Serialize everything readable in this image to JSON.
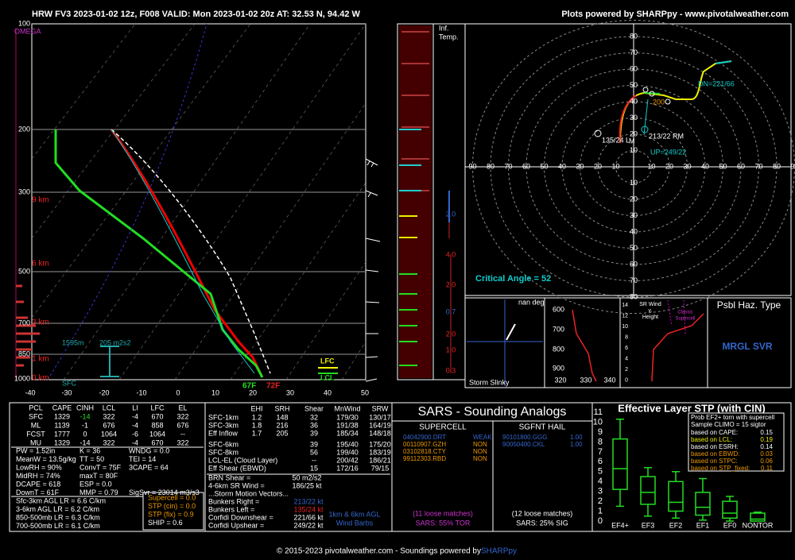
{
  "header": {
    "title": "HRW FV3 2023-01-02 12z, F008  VALID: Mon 2023-01-02 20z  AT: 32.53 N, 94.42 W",
    "credit": "Plots powered by SHARPpy - www.pivotalweather.com"
  },
  "skewt": {
    "pressure_labels": [
      "100",
      "200",
      "300",
      "500",
      "700",
      "850",
      "1000"
    ],
    "temp_labels": [
      "-40",
      "-30",
      "-20",
      "-10",
      "0",
      "10",
      "20",
      "30",
      "40",
      "50"
    ],
    "height_labels": [
      "9 km",
      "6 km",
      "3 km",
      "1 km",
      "0 km"
    ],
    "omega": "OMEGA",
    "eff_top": "1595m",
    "eff_srh": "205 m2s2",
    "sfc": "SFC",
    "lfc": "LFC",
    "lcl": "LCL",
    "dewpoint": "67F",
    "temperature": "72F"
  },
  "inferred_temp": {
    "title": "Inf.\nTemp.",
    "values": [
      "2.0",
      "4.0",
      "2.0",
      "0.7",
      "2.0",
      "1.0",
      "0.3"
    ]
  },
  "hodograph": {
    "rings": [
      "10",
      "20",
      "30",
      "40",
      "50",
      "60",
      "70",
      "80",
      "90"
    ],
    "downshear": "DN=221/66",
    "upshear": "UP=249/22",
    "left_mover": "135/24 L",
    "right_mover": "213/22 RM",
    "mean": "M",
    "level": "200",
    "critical_angle": "Critical Angle = 52"
  },
  "slinky": {
    "angle": "nan deg",
    "title": "Storm Slinky"
  },
  "theta_e": {
    "pressure": [
      "600",
      "700",
      "800",
      "900"
    ],
    "theta": [
      "320",
      "330",
      "340"
    ]
  },
  "sr_wind": {
    "title": [
      "SR Wind",
      "v.",
      "Height"
    ],
    "heights": [
      "14",
      "12",
      "10",
      "8",
      "6",
      "4",
      "2",
      "0"
    ],
    "classic": [
      "Classic",
      "Supercell"
    ]
  },
  "hazard": {
    "title": "Psbl Haz. Type",
    "type": "MRGL SVR"
  },
  "thermo": {
    "header": [
      "PCL",
      "CAPE",
      "CINH",
      "LCL",
      "LI",
      "LFC",
      "EL"
    ],
    "rows": [
      [
        "SFC",
        "1329",
        "-14",
        "322",
        "-4",
        "670",
        "322"
      ],
      [
        "ML",
        "1139",
        "-1",
        "676",
        "-4",
        "858",
        "676"
      ],
      [
        "FCST",
        "1777",
        "0",
        "1064",
        "-6",
        "1064",
        "--"
      ],
      [
        "MU",
        "1329",
        "-14",
        "322",
        "-4",
        "670",
        "322"
      ]
    ],
    "indices": [
      [
        "PW = 1.52in",
        "K = 36",
        "WNDG = 0.0"
      ],
      [
        "MeanW = 13.5g/kg",
        "TT = 50",
        "TEI = 14"
      ],
      [
        "LowRH = 90%",
        "ConvT = 75F",
        "3CAPE = 64"
      ],
      [
        "MidRH = 74%",
        "maxT = 80F",
        ""
      ],
      [
        "DCAPE = 618",
        "ESP = 0.0",
        ""
      ],
      [
        "DownT = 61F",
        "MMP = 0.79",
        "SigSvr = 23014 m3/s3"
      ]
    ],
    "lapse_rates": [
      "Sfc-3km AGL LR = 6.6 C/km",
      "3-6km AGL LR = 6.2 C/km",
      "850-500mb LR = 6.3 C/km",
      "700-500mb LR = 6.1 C/km"
    ],
    "composites": [
      "Supercell = 0.0",
      "STP (cin) = 0.0",
      "STP (fix) = 0.9",
      "SHIP = 0.6"
    ]
  },
  "kinematics": {
    "header": [
      "EHI",
      "SRH",
      "Shear",
      "MnWind",
      "SRW"
    ],
    "rows": [
      [
        "SFC-1km",
        "1.2",
        "148",
        "32",
        "179/30",
        "130/17"
      ],
      [
        "SFC-3km",
        "1.8",
        "216",
        "36",
        "191/38",
        "164/19"
      ],
      [
        "Eff Inflow",
        "1.7",
        "205",
        "39",
        "185/34",
        "148/18"
      ],
      [
        "SFC-6km",
        "",
        "",
        "39",
        "195/40",
        "175/20"
      ],
      [
        "SFC-8km",
        "",
        "",
        "56",
        "199/40",
        "183/19"
      ],
      [
        "LCL-EL (Cloud Layer)",
        "",
        "",
        "--",
        "200/42",
        "186/21"
      ],
      [
        "Eff Shear (EBWD)",
        "",
        "",
        "15",
        "172/16",
        "79/15"
      ]
    ],
    "extra": [
      [
        "BRN Shear =",
        "50 m2/s2"
      ],
      [
        "4-6km SR Wind =",
        "186/25 kt"
      ]
    ],
    "motion_title": "...Storm Motion Vectors...",
    "motion": [
      [
        "Bunkers Right =",
        "213/22 kt"
      ],
      [
        "Bunkers Left =",
        "135/24 kt"
      ],
      [
        "Corfidi Downshear =",
        "221/66 kt"
      ],
      [
        "Corfidi Upshear =",
        "249/22 kt"
      ]
    ],
    "barb_caption": [
      "1km & 6km AGL",
      "Wind Barbs"
    ]
  },
  "sars": {
    "title": "SARS - Sounding Analogs",
    "supercell_title": "SUPERCELL",
    "hail_title": "SGFNT HAIL",
    "supercell": [
      [
        "04042900.DRT",
        "WEAK"
      ],
      [
        "00110907.GZH",
        "NON"
      ],
      [
        "03102818.CTY",
        "NON"
      ],
      [
        "99112303.RBD",
        "NON"
      ]
    ],
    "hail": [
      [
        "90101800.GGG",
        "1.00"
      ],
      [
        "90050400.CKL",
        "1.00"
      ]
    ],
    "supercell_matches": "(11 loose matches)",
    "hail_matches": "(12 loose matches)",
    "supercell_result": "SARS: 55% TOR",
    "hail_result": "SARS: 25% SIG"
  },
  "stp": {
    "title": "Effective Layer STP (with CIN)",
    "yticks": [
      "0",
      "1",
      "2",
      "3",
      "4",
      "5",
      "6",
      "7",
      "8",
      "9",
      "10",
      "11"
    ],
    "categories": [
      "EF4+",
      "EF3",
      "EF2",
      "EF1",
      "EF0",
      "NONTOR"
    ],
    "prob_title": [
      "Prob EF2+ torn with supercell",
      "Sample CLIMO = 15 sigtor"
    ],
    "prob": [
      [
        "based on CAPE:",
        "0.15"
      ],
      [
        "based on LCL:",
        "0.19"
      ],
      [
        "based on ESRH:",
        "0.14"
      ],
      [
        "based on EBWD:",
        "0.03"
      ],
      [
        "based on STPC:",
        "0.06"
      ],
      [
        "based on STP_fixed:",
        "0.11"
      ]
    ]
  },
  "footer": {
    "text": "© 2015-2023 pivotalweather.com - Soundings powered by ",
    "link": "SHARPpy"
  }
}
